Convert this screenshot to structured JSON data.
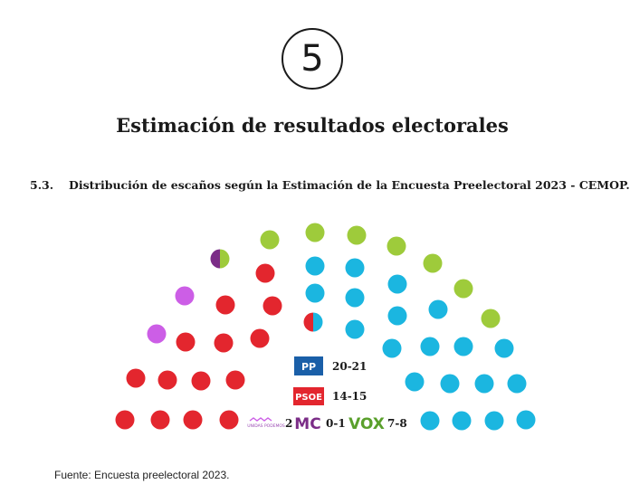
{
  "badge": "5",
  "title": "Estimación de resultados electorales",
  "section": {
    "number": "5.3.",
    "title": "Distribución de escaños según la Estimación de la Encuesta Preelectoral 2023 - CEMOP."
  },
  "source": "Fuente: Encuesta preelectoral 2023.",
  "colors": {
    "pp": "#1bb6e0",
    "psoe": "#e3262e",
    "vox": "#9ecb3b",
    "podemos": "#cc5ee6",
    "mc": "#7b2d87"
  },
  "chart_data": {
    "type": "parliament",
    "total_seats": 45,
    "series": [
      {
        "name": "Unidas Podemos",
        "seats": "2"
      },
      {
        "name": "MC",
        "seats": "0-1"
      },
      {
        "name": "VOX",
        "seats": "7-8"
      },
      {
        "name": "PP",
        "seats": "20-21"
      },
      {
        "name": "PSOE",
        "seats": "14-15"
      }
    ],
    "legend": [
      {
        "logo": "PP",
        "label": "20-21"
      },
      {
        "logo": "PSOE",
        "label": "14-15"
      },
      {
        "logo": "UNIDAS PODEMOS",
        "label": "2"
      },
      {
        "logo": "MC",
        "label": "0-1"
      },
      {
        "logo": "VOX",
        "label": "7-8"
      }
    ]
  }
}
